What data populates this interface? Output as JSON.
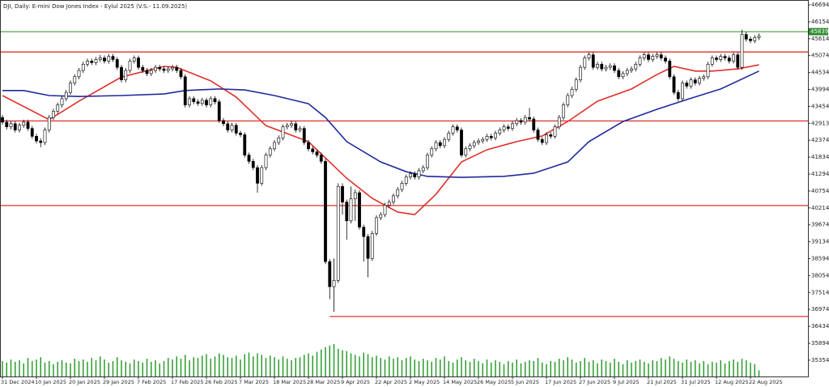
{
  "chart_data": {
    "type": "candlestick",
    "title": "DJI, Daily:  E-mini Dow Jones Index  - Eylul 2025 (V.S.- 11.09.2025)",
    "categories": [
      "31 Dec 2024",
      null,
      null,
      null,
      null,
      null,
      null,
      null,
      "10 Jan 2025",
      null,
      null,
      null,
      null,
      null,
      null,
      null,
      "20 Jan 2025",
      null,
      null,
      null,
      null,
      null,
      null,
      null,
      "29 Jan 2025",
      null,
      null,
      null,
      null,
      null,
      null,
      null,
      "7 Feb 2025",
      null,
      null,
      null,
      null,
      null,
      null,
      null,
      "17 Feb 2025",
      null,
      null,
      null,
      null,
      null,
      null,
      null,
      "26 Feb 2025",
      null,
      null,
      null,
      null,
      null,
      null,
      null,
      "7 Mar 2025",
      null,
      null,
      null,
      null,
      null,
      null,
      null,
      "18 Mar 2025",
      null,
      null,
      null,
      null,
      null,
      null,
      null,
      "28 Mar 2025",
      null,
      null,
      null,
      null,
      null,
      null,
      null,
      "9 Apr 2025",
      null,
      null,
      null,
      null,
      null,
      null,
      null,
      "22 Apr 2025",
      null,
      null,
      null,
      null,
      null,
      null,
      null,
      "2 May 2025",
      null,
      null,
      null,
      null,
      null,
      null,
      null,
      "14 May 2025",
      null,
      null,
      null,
      null,
      null,
      null,
      null,
      "26 May 2025",
      null,
      null,
      null,
      null,
      null,
      null,
      null,
      "5 Jun 2025",
      null,
      null,
      null,
      null,
      null,
      null,
      null,
      "17 Jun 2025",
      null,
      null,
      null,
      null,
      null,
      null,
      null,
      "27 Jun 2025",
      null,
      null,
      null,
      null,
      null,
      null,
      null,
      "9 Jul 2025",
      null,
      null,
      null,
      null,
      null,
      null,
      null,
      "21 Jul 2025",
      null,
      null,
      null,
      null,
      null,
      null,
      null,
      "31 Jul 2025",
      null,
      null,
      null,
      null,
      null,
      null,
      null,
      "12 Aug 2025",
      null,
      null,
      null,
      null,
      null,
      null,
      null,
      "22 Aug 2025",
      null,
      null
    ],
    "open": [
      43100,
      42950,
      42800,
      42900,
      42700,
      42850,
      42950,
      42750,
      42500,
      42350,
      42300,
      42700,
      43100,
      43300,
      43500,
      43700,
      43900,
      44200,
      44400,
      44600,
      44800,
      44900,
      44850,
      44950,
      45000,
      44900,
      45050,
      44950,
      44700,
      44300,
      44600,
      44900,
      45000,
      44700,
      44600,
      44500,
      44600,
      44700,
      44650,
      44600,
      44650,
      44700,
      44600,
      44400,
      43500,
      43700,
      43600,
      43550,
      43650,
      43500,
      43700,
      43600,
      43000,
      42900,
      42700,
      42850,
      42600,
      42550,
      41900,
      41700,
      41500,
      41000,
      41500,
      41900,
      42100,
      42300,
      42450,
      42800,
      42850,
      42900,
      42700,
      42750,
      42300,
      42100,
      42000,
      41900,
      41700,
      38500,
      37700,
      37900,
      40900,
      40400,
      39800,
      40500,
      40700,
      39600,
      39300,
      38600,
      39400,
      39900,
      40000,
      40300,
      40400,
      40600,
      40800,
      41000,
      41200,
      41300,
      41200,
      41400,
      41500,
      41900,
      42100,
      42300,
      42200,
      42400,
      42600,
      42800,
      42700,
      41900,
      42100,
      42200,
      42300,
      42350,
      42400,
      42500,
      42450,
      42600,
      42700,
      42800,
      42750,
      42900,
      43000,
      42950,
      43100,
      43050,
      42700,
      42400,
      42300,
      42550,
      42500,
      42800,
      43100,
      43500,
      43800,
      44000,
      44300,
      44700,
      45000,
      45100,
      44700,
      44800,
      44650,
      44700,
      44750,
      44600,
      44400,
      44500,
      44600,
      44650,
      44800,
      45000,
      45100,
      44950,
      45050,
      45100,
      45000,
      44900,
      44400,
      43900,
      43700,
      44200,
      44100,
      44300,
      44200,
      44350,
      44400,
      44800,
      45000,
      44950,
      45050,
      45000,
      44900,
      45100,
      44700,
      45750,
      45600,
      45550,
      45650
    ],
    "high": [
      43180,
      43030,
      42980,
      42980,
      42930,
      43030,
      43030,
      42830,
      42580,
      42430,
      42780,
      43180,
      43380,
      43580,
      43780,
      43980,
      44280,
      44480,
      44680,
      44880,
      44980,
      44980,
      45030,
      45100,
      45080,
      45130,
      45130,
      45030,
      44780,
      44680,
      44980,
      45080,
      45080,
      44780,
      44680,
      44680,
      44780,
      44780,
      44730,
      44730,
      44780,
      44780,
      44680,
      44480,
      43780,
      43780,
      43680,
      43730,
      43730,
      43780,
      43780,
      43680,
      43080,
      42980,
      42930,
      42930,
      42680,
      42630,
      41980,
      41780,
      41580,
      41580,
      41980,
      42180,
      42380,
      42530,
      42880,
      42930,
      43000,
      42980,
      42830,
      42830,
      42380,
      42180,
      42080,
      41980,
      41780,
      38580,
      38600,
      41000,
      41000,
      40480,
      40900,
      40800,
      40780,
      39680,
      39380,
      39480,
      39980,
      40080,
      40380,
      40480,
      40680,
      40880,
      41080,
      41280,
      41380,
      41380,
      41480,
      41580,
      41980,
      42180,
      42380,
      42380,
      42480,
      42680,
      42880,
      42880,
      42780,
      42180,
      42280,
      42380,
      42430,
      42480,
      42580,
      42580,
      42680,
      42780,
      42880,
      42880,
      42980,
      43080,
      43080,
      43180,
      43400,
      43130,
      42780,
      42480,
      42630,
      42630,
      42880,
      43180,
      43580,
      43880,
      44080,
      44380,
      44780,
      45080,
      45180,
      45180,
      44880,
      44880,
      44780,
      44830,
      44830,
      44680,
      44580,
      44680,
      44730,
      44880,
      45080,
      45180,
      45180,
      45130,
      45180,
      45180,
      45080,
      44980,
      44480,
      43980,
      44280,
      44280,
      44380,
      44380,
      44430,
      44480,
      44880,
      45080,
      45080,
      45130,
      45130,
      45080,
      45180,
      45180,
      45900,
      45830,
      45680,
      45730,
      45780
    ],
    "low": [
      42870,
      42720,
      42720,
      42620,
      42620,
      42770,
      42670,
      42420,
      42270,
      42150,
      42220,
      42620,
      43020,
      43220,
      43420,
      43620,
      43820,
      44120,
      44320,
      44520,
      44720,
      44770,
      44770,
      44870,
      44820,
      44820,
      44870,
      44620,
      44220,
      44220,
      44520,
      44820,
      44620,
      44520,
      44420,
      44420,
      44520,
      44570,
      44520,
      44520,
      44570,
      44520,
      44320,
      43420,
      43420,
      43520,
      43470,
      43470,
      43420,
      43420,
      43520,
      42920,
      42820,
      42620,
      42620,
      42520,
      42470,
      41820,
      41620,
      41420,
      40700,
      40920,
      41420,
      41820,
      42020,
      42220,
      42370,
      42720,
      42770,
      42620,
      42620,
      42220,
      42020,
      41920,
      41820,
      41620,
      38420,
      37300,
      36900,
      37820,
      40000,
      39200,
      39720,
      39800,
      39520,
      38500,
      38000,
      38520,
      39320,
      39820,
      39920,
      40220,
      40320,
      40520,
      40720,
      40920,
      41120,
      41120,
      41120,
      41320,
      41420,
      41820,
      42020,
      42120,
      42120,
      42320,
      42520,
      42620,
      41820,
      41820,
      42020,
      42120,
      42220,
      42270,
      42320,
      42370,
      42370,
      42520,
      42620,
      42670,
      42670,
      42820,
      42870,
      42870,
      42970,
      42620,
      42320,
      42220,
      42220,
      42420,
      42420,
      42720,
      43020,
      43420,
      43720,
      43920,
      44220,
      44620,
      44920,
      44620,
      44620,
      44570,
      44570,
      44620,
      44520,
      44320,
      44320,
      44420,
      44520,
      44570,
      44720,
      44920,
      44870,
      44870,
      44970,
      44920,
      44820,
      44320,
      43820,
      43620,
      43620,
      44020,
      44020,
      44120,
      44120,
      44270,
      44320,
      44720,
      44870,
      44870,
      44920,
      44820,
      44820,
      44620,
      44620,
      45520,
      45470,
      45470,
      45570
    ],
    "close": [
      42950,
      42800,
      42900,
      42700,
      42850,
      42950,
      42750,
      42500,
      42350,
      42300,
      42700,
      43100,
      43300,
      43500,
      43700,
      43900,
      44200,
      44400,
      44600,
      44800,
      44900,
      44850,
      44950,
      45000,
      44900,
      45050,
      44950,
      44700,
      44300,
      44600,
      44900,
      45000,
      44700,
      44600,
      44500,
      44600,
      44700,
      44650,
      44600,
      44650,
      44700,
      44600,
      44400,
      43500,
      43700,
      43600,
      43550,
      43650,
      43500,
      43700,
      43600,
      43000,
      42900,
      42700,
      42850,
      42600,
      42550,
      41900,
      41700,
      41500,
      41000,
      41500,
      41900,
      42100,
      42300,
      42450,
      42800,
      42850,
      42900,
      42700,
      42750,
      42300,
      42100,
      42000,
      41900,
      41700,
      38500,
      37700,
      37900,
      40900,
      40400,
      39800,
      40500,
      40700,
      39600,
      39300,
      38600,
      39400,
      39900,
      40000,
      40300,
      40400,
      40600,
      40800,
      41000,
      41200,
      41300,
      41200,
      41400,
      41500,
      41900,
      42100,
      42300,
      42200,
      42400,
      42600,
      42800,
      42700,
      41900,
      42100,
      42200,
      42300,
      42350,
      42400,
      42500,
      42450,
      42600,
      42700,
      42800,
      42750,
      42900,
      43000,
      42950,
      43100,
      43050,
      42700,
      42400,
      42300,
      42550,
      42500,
      42800,
      43100,
      43500,
      43800,
      44000,
      44300,
      44700,
      45000,
      45100,
      44700,
      44800,
      44650,
      44700,
      44750,
      44600,
      44400,
      44500,
      44600,
      44650,
      44800,
      45000,
      45100,
      44950,
      45050,
      45100,
      45000,
      44900,
      44400,
      43900,
      43700,
      44200,
      44100,
      44300,
      44200,
      44350,
      44400,
      44800,
      45000,
      44950,
      45050,
      45000,
      44900,
      45100,
      44700,
      45750,
      45600,
      45550,
      45650,
      45700
    ],
    "volume": [
      20,
      18,
      22,
      19,
      21,
      17,
      24,
      20,
      22,
      25,
      18,
      20,
      16,
      19,
      21,
      18,
      17,
      23,
      20,
      22,
      19,
      24,
      21,
      26,
      22,
      18,
      20,
      25,
      21,
      19,
      17,
      22,
      20,
      18,
      23,
      19,
      21,
      17,
      20,
      24,
      22,
      26,
      23,
      28,
      21,
      25,
      24,
      27,
      29,
      23,
      26,
      30,
      28,
      25,
      24,
      27,
      22,
      29,
      31,
      26,
      30,
      28,
      24,
      27,
      25,
      22,
      26,
      23,
      21,
      24,
      25,
      28,
      30,
      27,
      32,
      35,
      38,
      40,
      42,
      36,
      34,
      33,
      30,
      28,
      26,
      31,
      29,
      25,
      27,
      24,
      22,
      26,
      23,
      25,
      21,
      24,
      26,
      22,
      20,
      23,
      21,
      19,
      24,
      22,
      26,
      20,
      18,
      22,
      25,
      21,
      19,
      23,
      20,
      17,
      22,
      18,
      21,
      19,
      16,
      20,
      18,
      22,
      17,
      19,
      21,
      20,
      24,
      18,
      16,
      20,
      19,
      23,
      21,
      25,
      22,
      18,
      20,
      24,
      19,
      21,
      17,
      22,
      20,
      18,
      23,
      19,
      16,
      21,
      18,
      20,
      22,
      19,
      17,
      21,
      20,
      24,
      22,
      26,
      23,
      20,
      18,
      22,
      19,
      21,
      17,
      20,
      16,
      19,
      18,
      21,
      17,
      20,
      22,
      19,
      23,
      21,
      18,
      16,
      8
    ],
    "up_color": "#ffffff",
    "down_color": "#000000",
    "volume_color": "#2e9b2e",
    "moving_averages": [
      {
        "color": "#e0302a",
        "x": [
          0,
          11,
          18,
          28,
          38,
          41,
          49,
          55,
          62,
          72,
          76,
          81,
          87,
          93,
          97,
          102,
          108,
          114,
          121,
          127,
          133,
          140,
          148,
          154,
          158,
          163,
          167,
          173,
          178
        ],
        "values": [
          43800,
          43030,
          43620,
          44390,
          44730,
          44700,
          44270,
          43750,
          42840,
          42330,
          41810,
          41160,
          40520,
          40080,
          40000,
          40650,
          41680,
          42070,
          42330,
          42510,
          42970,
          43620,
          44010,
          44470,
          44730,
          44580,
          44580,
          44650,
          44780
        ]
      },
      {
        "color": "#1f2a9c",
        "x": [
          0,
          5,
          11,
          18,
          28,
          38,
          43,
          51,
          57,
          64,
          72,
          76,
          81,
          89,
          95,
          100,
          108,
          118,
          125,
          133,
          138,
          146,
          154,
          161,
          169,
          178
        ],
        "values": [
          43960,
          43960,
          43800,
          43770,
          43800,
          43850,
          43960,
          44010,
          43980,
          43800,
          43540,
          43100,
          42330,
          41680,
          41370,
          41220,
          41190,
          41220,
          41320,
          41680,
          42330,
          42970,
          43360,
          43670,
          44010,
          44580
        ]
      }
    ],
    "levels": [
      {
        "value": 45190,
        "color": "#e0302a",
        "from_index": 0
      },
      {
        "value": 42990,
        "color": "#e0302a",
        "from_index": 0
      },
      {
        "value": 40290,
        "color": "#e0302a",
        "from_index": 0
      },
      {
        "value": 36750,
        "color": "#e0302a",
        "from_index": 77
      }
    ],
    "price_line": {
      "value": 45839,
      "color": "#2e8b2e"
    },
    "ylim": [
      34834,
      46849
    ],
    "yticks": [
      46694,
      46154,
      45614,
      45074,
      44534,
      43994,
      43454,
      42913,
      42374,
      41834,
      41294,
      40754,
      40214,
      39674,
      39134,
      38594,
      38054,
      37514,
      36974,
      36434,
      35894,
      35354
    ]
  }
}
